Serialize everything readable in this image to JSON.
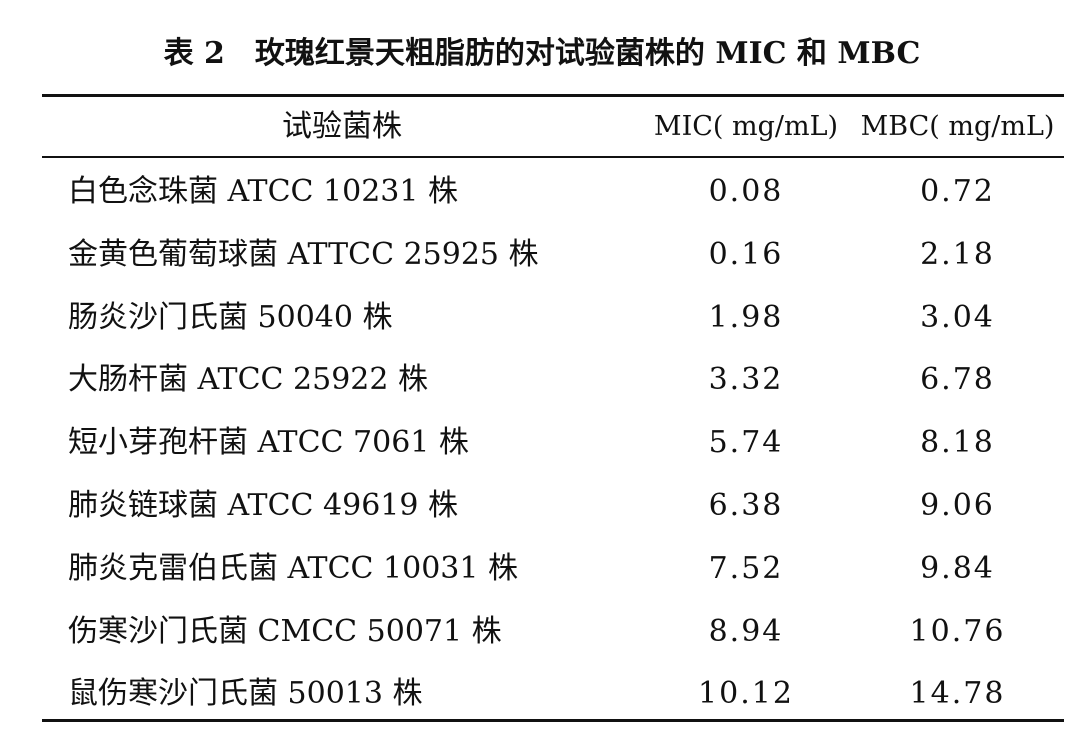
{
  "table": {
    "title": "表 2　玫瑰红景天粗脂肪的对试验菌株的 MIC 和 MBC",
    "columns": {
      "strain": "试验菌株",
      "mic": "MIC( mg/mL)",
      "mbc": "MBC( mg/mL)"
    },
    "rows": [
      {
        "strain": "白色念珠菌 ATCC 10231 株",
        "mic": "0.08",
        "mbc": "0.72"
      },
      {
        "strain": "金黄色葡萄球菌 ATTCC 25925 株",
        "mic": "0.16",
        "mbc": "2.18"
      },
      {
        "strain": "肠炎沙门氏菌 50040 株",
        "mic": "1.98",
        "mbc": "3.04"
      },
      {
        "strain": "大肠杆菌 ATCC 25922 株",
        "mic": "3.32",
        "mbc": "6.78"
      },
      {
        "strain": "短小芽孢杆菌 ATCC 7061 株",
        "mic": "5.74",
        "mbc": "8.18"
      },
      {
        "strain": "肺炎链球菌 ATCC 49619 株",
        "mic": "6.38",
        "mbc": "9.06"
      },
      {
        "strain": "肺炎克雷伯氏菌 ATCC 10031 株",
        "mic": "7.52",
        "mbc": "9.84"
      },
      {
        "strain": "伤寒沙门氏菌 CMCC 50071 株",
        "mic": "8.94",
        "mbc": "10.76"
      },
      {
        "strain": "鼠伤寒沙门氏菌 50013 株",
        "mic": "10.12",
        "mbc": "14.78"
      }
    ]
  }
}
